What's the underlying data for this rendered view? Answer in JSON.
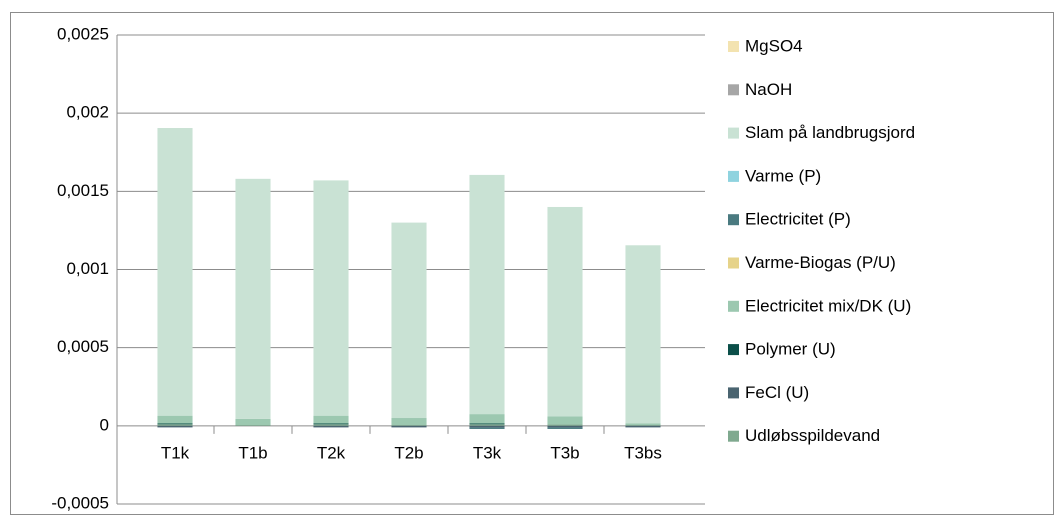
{
  "chart_data": {
    "type": "stacked_bar",
    "categories": [
      "T1k",
      "T1b",
      "T2k",
      "T2b",
      "T3k",
      "T3b",
      "T3bs"
    ],
    "series": [
      {
        "name": "Udløbsspildevand",
        "color": "#7fa98f",
        "values": [
          1e-05,
          5e-06,
          1e-05,
          5e-06,
          1e-05,
          1e-05,
          5e-06
        ]
      },
      {
        "name": "FeCl (U)",
        "color": "#4a6470",
        "values": [
          -1e-05,
          0,
          -1e-05,
          -1e-05,
          -1e-05,
          -1e-05,
          -1e-05
        ]
      },
      {
        "name": "Polymer (U)",
        "color": "#0b4f49",
        "values": [
          5e-06,
          0,
          5e-06,
          0,
          5e-06,
          0,
          0
        ]
      },
      {
        "name": "Electricitet mix/DK (U)",
        "color": "#9cc8b0",
        "values": [
          5e-05,
          4e-05,
          5e-05,
          4.5e-05,
          6e-05,
          5e-05,
          1e-05
        ]
      },
      {
        "name": "Varme-Biogas (P/U)",
        "color": "#e6d38a",
        "values": [
          0,
          0,
          0,
          0,
          0,
          0,
          0
        ]
      },
      {
        "name": "Electricitet (P)",
        "color": "#4a7a80",
        "values": [
          0,
          0,
          0,
          0,
          -1e-05,
          -1e-05,
          0
        ]
      },
      {
        "name": "Varme (P)",
        "color": "#8fd3df",
        "values": [
          0,
          0,
          0,
          0,
          0,
          0,
          0
        ]
      },
      {
        "name": "Slam på landbrugsjord",
        "color": "#c9e2d4",
        "values": [
          0.00184,
          0.001535,
          0.001505,
          0.00125,
          0.00153,
          0.00134,
          0.00114
        ]
      },
      {
        "name": "NaOH",
        "color": "#a6a6a6",
        "values": [
          0,
          0,
          0,
          0,
          0,
          0,
          0
        ]
      },
      {
        "name": "MgSO4",
        "color": "#f3e3b0",
        "values": [
          0,
          0,
          0,
          0,
          0,
          0,
          0
        ]
      }
    ],
    "ylim": [
      -0.0005,
      0.0025
    ],
    "yticks": [
      {
        "value": -0.0005,
        "label": "-0,0005"
      },
      0,
      {
        "value": 0.0005,
        "label": "0,0005"
      },
      {
        "value": 0.001,
        "label": "0,001"
      },
      {
        "value": 0.0015,
        "label": "0,0015"
      },
      {
        "value": 0.002,
        "label": "0,002"
      },
      {
        "value": 0.0025,
        "label": "0,0025"
      }
    ],
    "grid": true,
    "legend": "right"
  }
}
